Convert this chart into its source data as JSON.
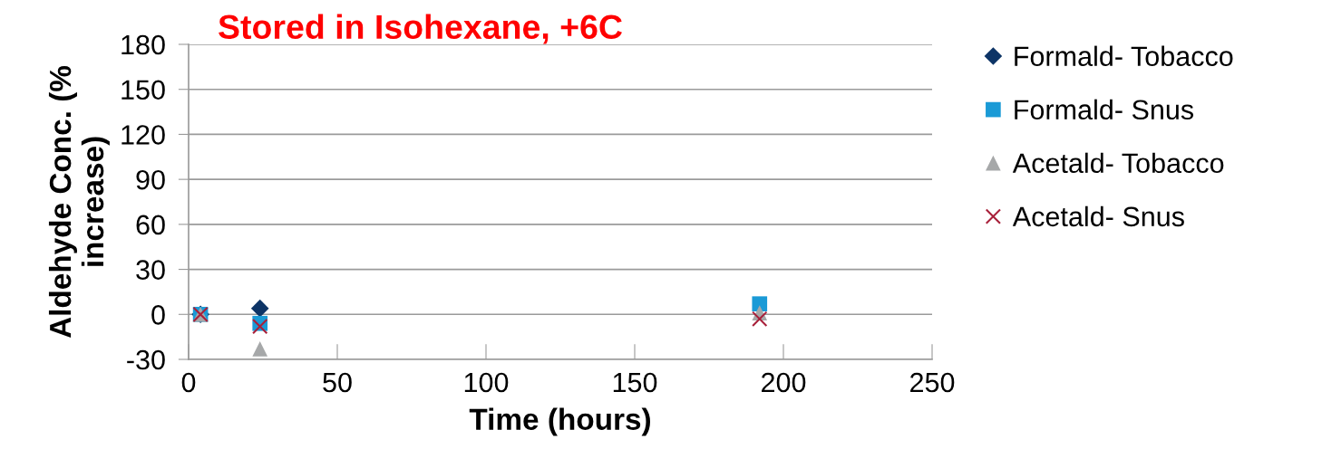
{
  "chart_data": {
    "type": "scatter",
    "title": "Stored in Isohexane, +6C",
    "xlabel": "Time (hours)",
    "ylabel": "Aldehyde Conc. (%\nincrease)",
    "x": [
      4,
      24,
      192
    ],
    "series": [
      {
        "name": "Formald- Tobacco",
        "color": "#0d3466",
        "marker": "diamond",
        "values": [
          0,
          4,
          null
        ]
      },
      {
        "name": "Formald- Snus",
        "color": "#1a9ad6",
        "marker": "square",
        "values": [
          0,
          -6,
          7
        ]
      },
      {
        "name": "Acetald- Tobacco",
        "color": "#a6a8a9",
        "marker": "triangle",
        "values": [
          0,
          -23,
          1
        ]
      },
      {
        "name": "Acetald- Snus",
        "color": "#a8203a",
        "marker": "cross",
        "values": [
          0,
          -8,
          -3
        ]
      }
    ],
    "xlim": [
      0,
      250
    ],
    "xticks": [
      0,
      50,
      100,
      150,
      200,
      250
    ],
    "ylim": [
      -30,
      180
    ],
    "yticks": [
      -30,
      0,
      30,
      60,
      90,
      120,
      150,
      180
    ],
    "grid": "y",
    "legend": "right"
  }
}
